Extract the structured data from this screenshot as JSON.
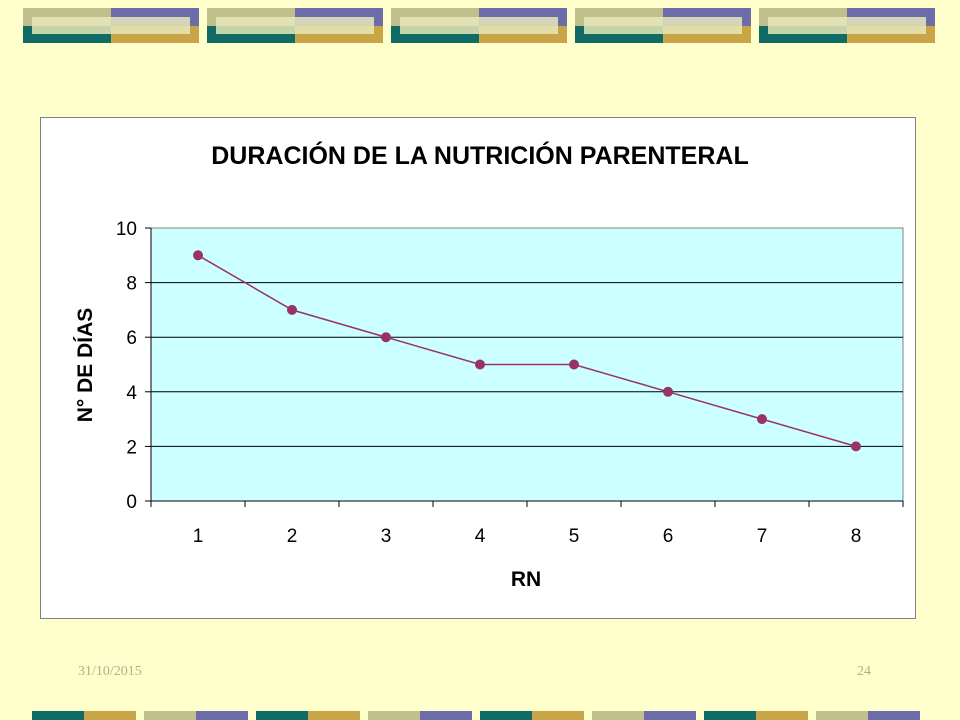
{
  "slide": {
    "date": "31/10/2015",
    "page_number": "24",
    "background_color": "#FFFFCC"
  },
  "colors": {
    "teal": "#0F6B63",
    "olive": "#BFC08E",
    "slate": "#6C6CA8",
    "gold": "#C9A548",
    "plot_bg": "#CCFFFF",
    "series": "#993366"
  },
  "chart_data": {
    "type": "line",
    "title": "DURACIÓN DE LA NUTRICIÓN PARENTERAL",
    "xlabel": "RN",
    "ylabel": "N° DE DÍAS",
    "categories": [
      "1",
      "2",
      "3",
      "4",
      "5",
      "6",
      "7",
      "8"
    ],
    "series": [
      {
        "values": [
          9,
          7,
          6,
          5,
          5,
          4,
          3,
          2
        ]
      }
    ],
    "ylim": [
      0,
      10
    ],
    "yticks": [
      "0",
      "2",
      "4",
      "6",
      "8",
      "10"
    ],
    "grid": true,
    "legend": "none"
  }
}
